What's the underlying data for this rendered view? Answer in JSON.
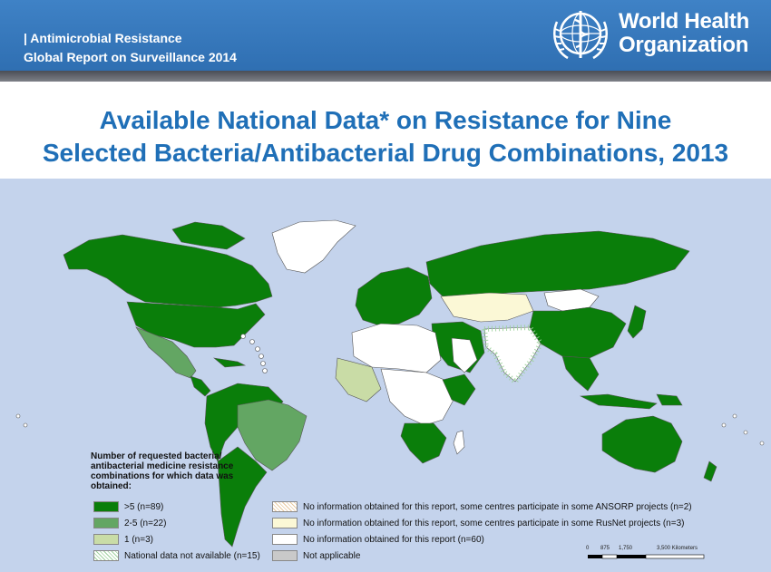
{
  "header": {
    "line1": "| Antimicrobial Resistance",
    "line2": "Global Report on Surveillance 2014",
    "org_line1": "World Health",
    "org_line2": "Organization",
    "emblem_icon": "who-emblem-icon"
  },
  "title": {
    "line1": "Available National Data* on Resistance for Nine",
    "line2": "Selected Bacteria/Antibacterial Drug Combinations, 2013"
  },
  "map": {
    "ocean_color": "#c4d3ec",
    "category_colors": {
      "gt5": "#0a7e0a",
      "r2_5": "#63a663",
      "r1": "#c9dca6",
      "not_available": "#9fd29f",
      "ansorp": "#e8c9a0",
      "rusnet": "#fbf8d6",
      "no_info": "#ffffff",
      "not_applicable": "#c9c9c9"
    }
  },
  "legend": {
    "title": "Number of requested bacteria/ antibacterial medicine resistance combinations for which data was obtained:",
    "items": [
      {
        "label": ">5  (n=89)"
      },
      {
        "label": "2-5  (n=22)"
      },
      {
        "label": "1  (n=3)"
      },
      {
        "label": "National data not available  (n=15)"
      },
      {
        "label": "No information obtained for this report, some centres participate in some ANSORP projects (n=2)"
      },
      {
        "label": "No information obtained for this report, some centres participate in some RusNet projects (n=3)"
      },
      {
        "label": "No information obtained for this report (n=60)"
      },
      {
        "label": "Not applicable"
      }
    ]
  },
  "scale": {
    "ticks": [
      "0",
      "875",
      "1,750",
      "3,500 Kilometers"
    ]
  }
}
